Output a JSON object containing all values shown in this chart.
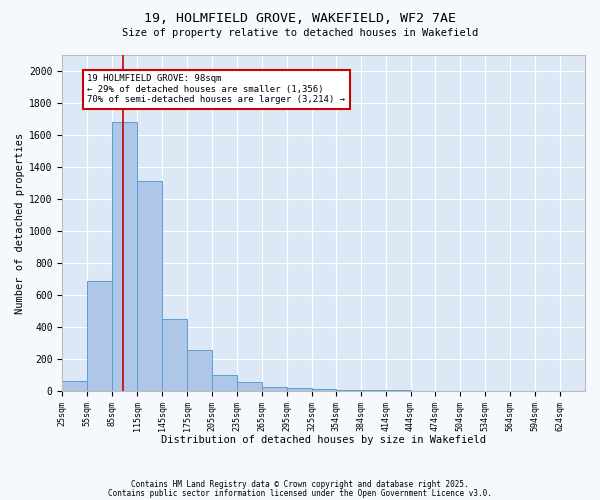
{
  "title1": "19, HOLMFIELD GROVE, WAKEFIELD, WF2 7AE",
  "title2": "Size of property relative to detached houses in Wakefield",
  "xlabel": "Distribution of detached houses by size in Wakefield",
  "ylabel": "Number of detached properties",
  "bin_labels": [
    "25sqm",
    "55sqm",
    "85sqm",
    "115sqm",
    "145sqm",
    "175sqm",
    "205sqm",
    "235sqm",
    "265sqm",
    "295sqm",
    "325sqm",
    "354sqm",
    "384sqm",
    "414sqm",
    "444sqm",
    "474sqm",
    "504sqm",
    "534sqm",
    "564sqm",
    "594sqm",
    "624sqm"
  ],
  "bin_edges": [
    25,
    55,
    85,
    115,
    145,
    175,
    205,
    235,
    265,
    295,
    325,
    354,
    384,
    414,
    444,
    474,
    504,
    534,
    564,
    594,
    624,
    654
  ],
  "bar_heights": [
    65,
    690,
    1680,
    1310,
    450,
    255,
    100,
    55,
    25,
    18,
    12,
    8,
    5,
    4,
    3,
    2,
    2,
    1,
    1,
    1,
    1
  ],
  "bar_color": "#aec6e8",
  "bar_edge_color": "#5a9fd4",
  "property_size": 98,
  "red_line_color": "#cc0000",
  "annotation_text": "19 HOLMFIELD GROVE: 98sqm\n← 29% of detached houses are smaller (1,356)\n70% of semi-detached houses are larger (3,214) →",
  "annotation_box_color": "#ffffff",
  "annotation_edge_color": "#cc0000",
  "ylim": [
    0,
    2100
  ],
  "yticks": [
    0,
    200,
    400,
    600,
    800,
    1000,
    1200,
    1400,
    1600,
    1800,
    2000
  ],
  "background_color": "#dce8f5",
  "grid_color": "#ffffff",
  "fig_background": "#f5f8fc",
  "footer1": "Contains HM Land Registry data © Crown copyright and database right 2025.",
  "footer2": "Contains public sector information licensed under the Open Government Licence v3.0."
}
